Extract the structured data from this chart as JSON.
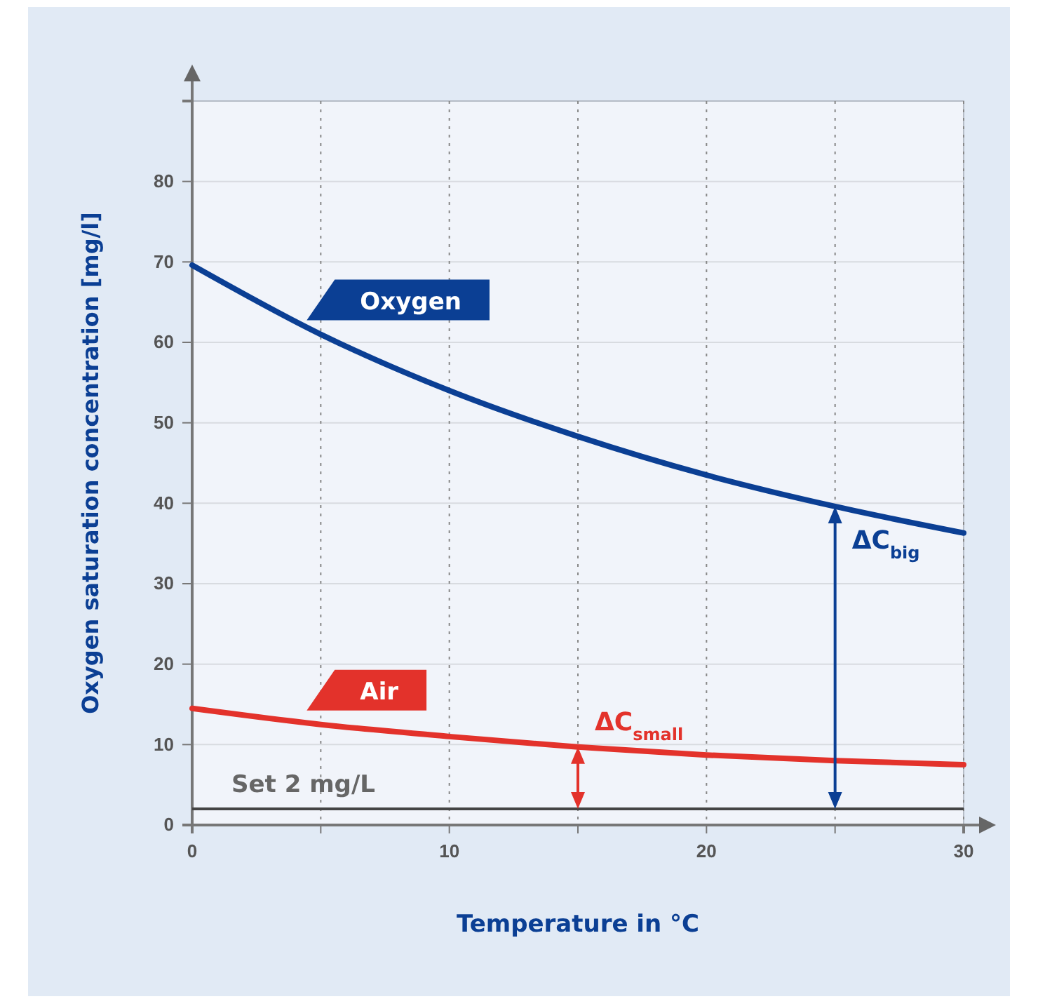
{
  "chart_data": {
    "type": "line",
    "xlabel": "Temperature in °C",
    "ylabel": "Oxygen saturation concentration [mg/l]",
    "x": [
      0,
      5,
      10,
      15,
      20,
      25,
      30
    ],
    "series": [
      {
        "name": "Oxygen",
        "color": "#0b3f94",
        "values": [
          69.6,
          61,
          54,
          48.3,
          43.5,
          39.6,
          36.3
        ]
      },
      {
        "name": "Air",
        "color": "#e3322b",
        "values": [
          14.5,
          12.5,
          11,
          9.7,
          8.7,
          8,
          7.5
        ]
      }
    ],
    "xlim": [
      0,
      30
    ],
    "ylim": [
      0,
      90
    ],
    "xticks": [
      0,
      {
        "value": 5,
        "label": null
      },
      10,
      {
        "value": 15,
        "label": null
      },
      20,
      {
        "value": 25,
        "label": null
      },
      30
    ],
    "yticks": [
      0,
      10,
      20,
      30,
      40,
      50,
      60,
      70,
      80
    ],
    "grid": true,
    "legend": false,
    "marker": "none",
    "line_style": "solid",
    "ref_lines": [
      {
        "axis": "y",
        "value": 2,
        "label": "Set 2 mg/L",
        "color": "#444444"
      }
    ],
    "annotations": [
      {
        "text": "ΔC$_{small}$",
        "x": 15,
        "y": 9.7
      },
      {
        "text": "ΔC$_{big}$",
        "x": 25,
        "y": 39.6
      }
    ]
  }
}
